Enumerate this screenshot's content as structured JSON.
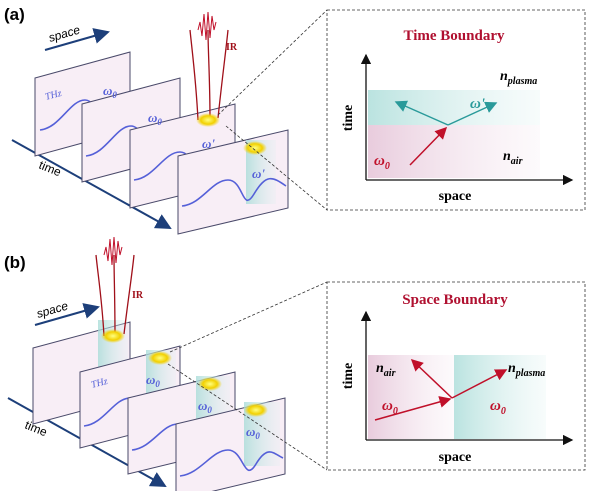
{
  "panels": [
    {
      "label": "(a)",
      "left": {
        "space": "space",
        "time": "time",
        "thz": "THz",
        "ir": "IR",
        "frames": [
          {
            "base": "ω",
            "sub": "0"
          },
          {
            "base": "ω",
            "sub": "0"
          },
          {
            "base": "ω'"
          },
          {
            "base": "ω'"
          }
        ]
      },
      "right": {
        "title": "Time Boundary",
        "y_axis": "time",
        "x_axis": "space",
        "upper_medium": {
          "base": "n",
          "sub": "plasma"
        },
        "lower_medium": {
          "base": "n",
          "sub": "air"
        },
        "incident": {
          "base": "ω",
          "sub": "0"
        },
        "converted": {
          "base": "ω'"
        }
      }
    },
    {
      "label": "(b)",
      "left": {
        "space": "space",
        "time": "time",
        "thz": "THz",
        "ir": "IR",
        "frames": [
          {
            "base": "ω",
            "sub": "0"
          },
          {
            "base": "ω",
            "sub": "0"
          },
          {
            "base": "ω",
            "sub": "0"
          }
        ]
      },
      "right": {
        "title": "Space Boundary",
        "y_axis": "time",
        "x_axis": "space",
        "left_medium": {
          "base": "n",
          "sub": "air"
        },
        "right_medium": {
          "base": "n",
          "sub": "plasma"
        },
        "incident": {
          "base": "ω",
          "sub": "0"
        },
        "transmitted": {
          "base": "ω",
          "sub": "0"
        }
      }
    }
  ]
}
